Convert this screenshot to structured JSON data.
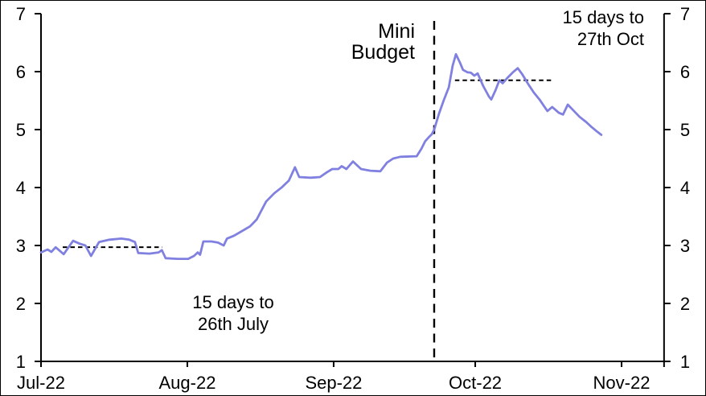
{
  "chart_data": {
    "type": "line",
    "title": "",
    "xlabel": "",
    "ylabel": "",
    "grid": false,
    "x_axis": {
      "tick_labels": [
        "Jul-22",
        "Aug-22",
        "Sep-22",
        "Oct-22",
        "Nov-22"
      ],
      "tick_days": [
        0,
        31,
        62,
        92,
        123
      ],
      "range_days": [
        0,
        132
      ]
    },
    "y_axis": {
      "ticks": [
        1,
        2,
        3,
        4,
        5,
        6,
        7
      ],
      "tick_labels": [
        "1",
        "2",
        "3",
        "4",
        "5",
        "6",
        "7"
      ],
      "range": [
        1,
        7
      ],
      "sides": [
        "left",
        "right"
      ]
    },
    "series": [
      {
        "name": "gilt-yield-line",
        "color": "#8080e0",
        "points": [
          [
            0,
            2.88
          ],
          [
            1.4,
            2.93
          ],
          [
            2.2,
            2.89
          ],
          [
            3.1,
            2.97
          ],
          [
            4.8,
            2.85
          ],
          [
            6.8,
            3.08
          ],
          [
            8.2,
            3.03
          ],
          [
            9.4,
            3.0
          ],
          [
            10.6,
            2.82
          ],
          [
            12.3,
            3.06
          ],
          [
            14.5,
            3.1
          ],
          [
            17,
            3.12
          ],
          [
            18.7,
            3.1
          ],
          [
            19.9,
            3.06
          ],
          [
            20.6,
            2.87
          ],
          [
            23,
            2.86
          ],
          [
            24.9,
            2.88
          ],
          [
            25.6,
            2.92
          ],
          [
            26.4,
            2.78
          ],
          [
            29,
            2.77
          ],
          [
            31.2,
            2.77
          ],
          [
            32.4,
            2.82
          ],
          [
            33.2,
            2.88
          ],
          [
            33.7,
            2.84
          ],
          [
            34.4,
            3.07
          ],
          [
            36.1,
            3.07
          ],
          [
            37.5,
            3.05
          ],
          [
            38.7,
            3.0
          ],
          [
            39.4,
            3.12
          ],
          [
            40.9,
            3.17
          ],
          [
            42.6,
            3.25
          ],
          [
            44.3,
            3.33
          ],
          [
            45.7,
            3.45
          ],
          [
            46.8,
            3.62
          ],
          [
            47.7,
            3.76
          ],
          [
            49.4,
            3.9
          ],
          [
            51.1,
            4.01
          ],
          [
            52.5,
            4.12
          ],
          [
            53.8,
            4.35
          ],
          [
            54.7,
            4.18
          ],
          [
            57.1,
            4.17
          ],
          [
            59.1,
            4.18
          ],
          [
            60.5,
            4.26
          ],
          [
            61.7,
            4.32
          ],
          [
            63,
            4.32
          ],
          [
            63.7,
            4.37
          ],
          [
            64.7,
            4.32
          ],
          [
            66.1,
            4.45
          ],
          [
            67.8,
            4.32
          ],
          [
            69.8,
            4.29
          ],
          [
            71.9,
            4.28
          ],
          [
            73.3,
            4.43
          ],
          [
            74.6,
            4.5
          ],
          [
            76.1,
            4.53
          ],
          [
            79.6,
            4.54
          ],
          [
            80.6,
            4.67
          ],
          [
            81.4,
            4.8
          ],
          [
            82.3,
            4.88
          ],
          [
            82.8,
            4.92
          ],
          [
            83.3,
            5.0
          ],
          [
            84.3,
            5.27
          ],
          [
            85.3,
            5.5
          ],
          [
            86.4,
            5.73
          ],
          [
            87.2,
            6.1
          ],
          [
            87.9,
            6.3
          ],
          [
            88.8,
            6.15
          ],
          [
            89.4,
            6.03
          ],
          [
            90.3,
            5.99
          ],
          [
            91.1,
            5.98
          ],
          [
            91.8,
            5.93
          ],
          [
            92.5,
            5.97
          ],
          [
            93.7,
            5.75
          ],
          [
            94.9,
            5.57
          ],
          [
            95.4,
            5.52
          ],
          [
            96.3,
            5.68
          ],
          [
            97.1,
            5.85
          ],
          [
            97.8,
            5.8
          ],
          [
            98.8,
            5.89
          ],
          [
            100,
            5.99
          ],
          [
            101,
            6.06
          ],
          [
            102,
            5.95
          ],
          [
            103.1,
            5.8
          ],
          [
            104.4,
            5.64
          ],
          [
            105.6,
            5.52
          ],
          [
            107.3,
            5.32
          ],
          [
            108.3,
            5.39
          ],
          [
            109.7,
            5.29
          ],
          [
            110.6,
            5.26
          ],
          [
            111.6,
            5.43
          ],
          [
            112.8,
            5.33
          ],
          [
            114.1,
            5.22
          ],
          [
            115.5,
            5.13
          ],
          [
            116.7,
            5.04
          ],
          [
            117.9,
            4.96
          ],
          [
            118.7,
            4.91
          ]
        ]
      }
    ],
    "annotations": {
      "mini_budget": {
        "type": "vline",
        "day": 83.3,
        "line1": "Mini",
        "line2": "Budget"
      },
      "avg_july": {
        "type": "hline",
        "value": 2.97,
        "day_start": 4.6,
        "day_end": 25.7,
        "line1": "15 days to",
        "line2": "26th July"
      },
      "avg_oct": {
        "type": "hline",
        "value": 5.85,
        "day_start": 87.7,
        "day_end": 108.7,
        "line1": "15 days to",
        "line2": "27th Oct"
      }
    },
    "colors": {
      "line": "#8080e0",
      "axis": "#000000",
      "annotation_dash": "#000000"
    }
  }
}
